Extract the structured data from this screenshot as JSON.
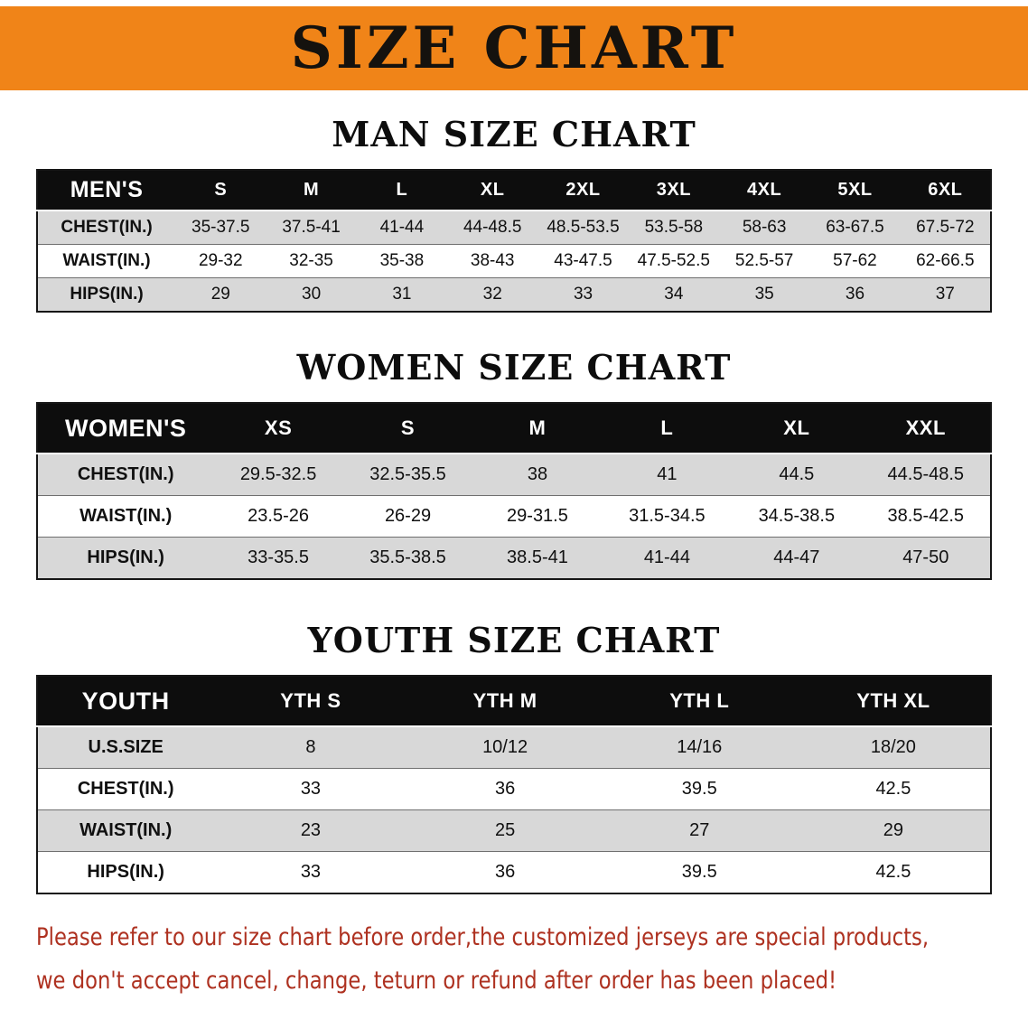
{
  "banner": {
    "title": "SIZE CHART"
  },
  "colors": {
    "banner_bg": "#F08418",
    "table_header_bg": "#0d0d0d",
    "row_alt_bg": "#d8d8d8",
    "notice_text": "#ae3120"
  },
  "sections": [
    {
      "id": "men",
      "heading": "MAN SIZE CHART",
      "columns": [
        "MEN'S",
        "S",
        "M",
        "L",
        "XL",
        "2XL",
        "3XL",
        "4XL",
        "5XL",
        "6XL"
      ],
      "rows": [
        [
          "CHEST(IN.)",
          "35-37.5",
          "37.5-41",
          "41-44",
          "44-48.5",
          "48.5-53.5",
          "53.5-58",
          "58-63",
          "63-67.5",
          "67.5-72"
        ],
        [
          "WAIST(IN.)",
          "29-32",
          "32-35",
          "35-38",
          "38-43",
          "43-47.5",
          "47.5-52.5",
          "52.5-57",
          "57-62",
          "62-66.5"
        ],
        [
          "HIPS(IN.)",
          "29",
          "30",
          "31",
          "32",
          "33",
          "34",
          "35",
          "36",
          "37"
        ]
      ]
    },
    {
      "id": "women",
      "heading": "WOMEN SIZE CHART",
      "columns": [
        "WOMEN'S",
        "XS",
        "S",
        "M",
        "L",
        "XL",
        "XXL"
      ],
      "rows": [
        [
          "CHEST(IN.)",
          "29.5-32.5",
          "32.5-35.5",
          "38",
          "41",
          "44.5",
          "44.5-48.5"
        ],
        [
          "WAIST(IN.)",
          "23.5-26",
          "26-29",
          "29-31.5",
          "31.5-34.5",
          "34.5-38.5",
          "38.5-42.5"
        ],
        [
          "HIPS(IN.)",
          "33-35.5",
          "35.5-38.5",
          "38.5-41",
          "41-44",
          "44-47",
          "47-50"
        ]
      ]
    },
    {
      "id": "youth",
      "heading": "YOUTH SIZE CHART",
      "columns": [
        "YOUTH",
        "YTH S",
        "YTH M",
        "YTH L",
        "YTH XL"
      ],
      "rows": [
        [
          "U.S.SIZE",
          "8",
          "10/12",
          "14/16",
          "18/20"
        ],
        [
          "CHEST(IN.)",
          "33",
          "36",
          "39.5",
          "42.5"
        ],
        [
          "WAIST(IN.)",
          "23",
          "25",
          "27",
          "29"
        ],
        [
          "HIPS(IN.)",
          "33",
          "36",
          "39.5",
          "42.5"
        ]
      ]
    }
  ],
  "footer": {
    "line1": "Please refer to our size chart before order,the customized jerseys are special products,",
    "line2": "we don't accept cancel, change, teturn or refund after order has been placed!"
  }
}
